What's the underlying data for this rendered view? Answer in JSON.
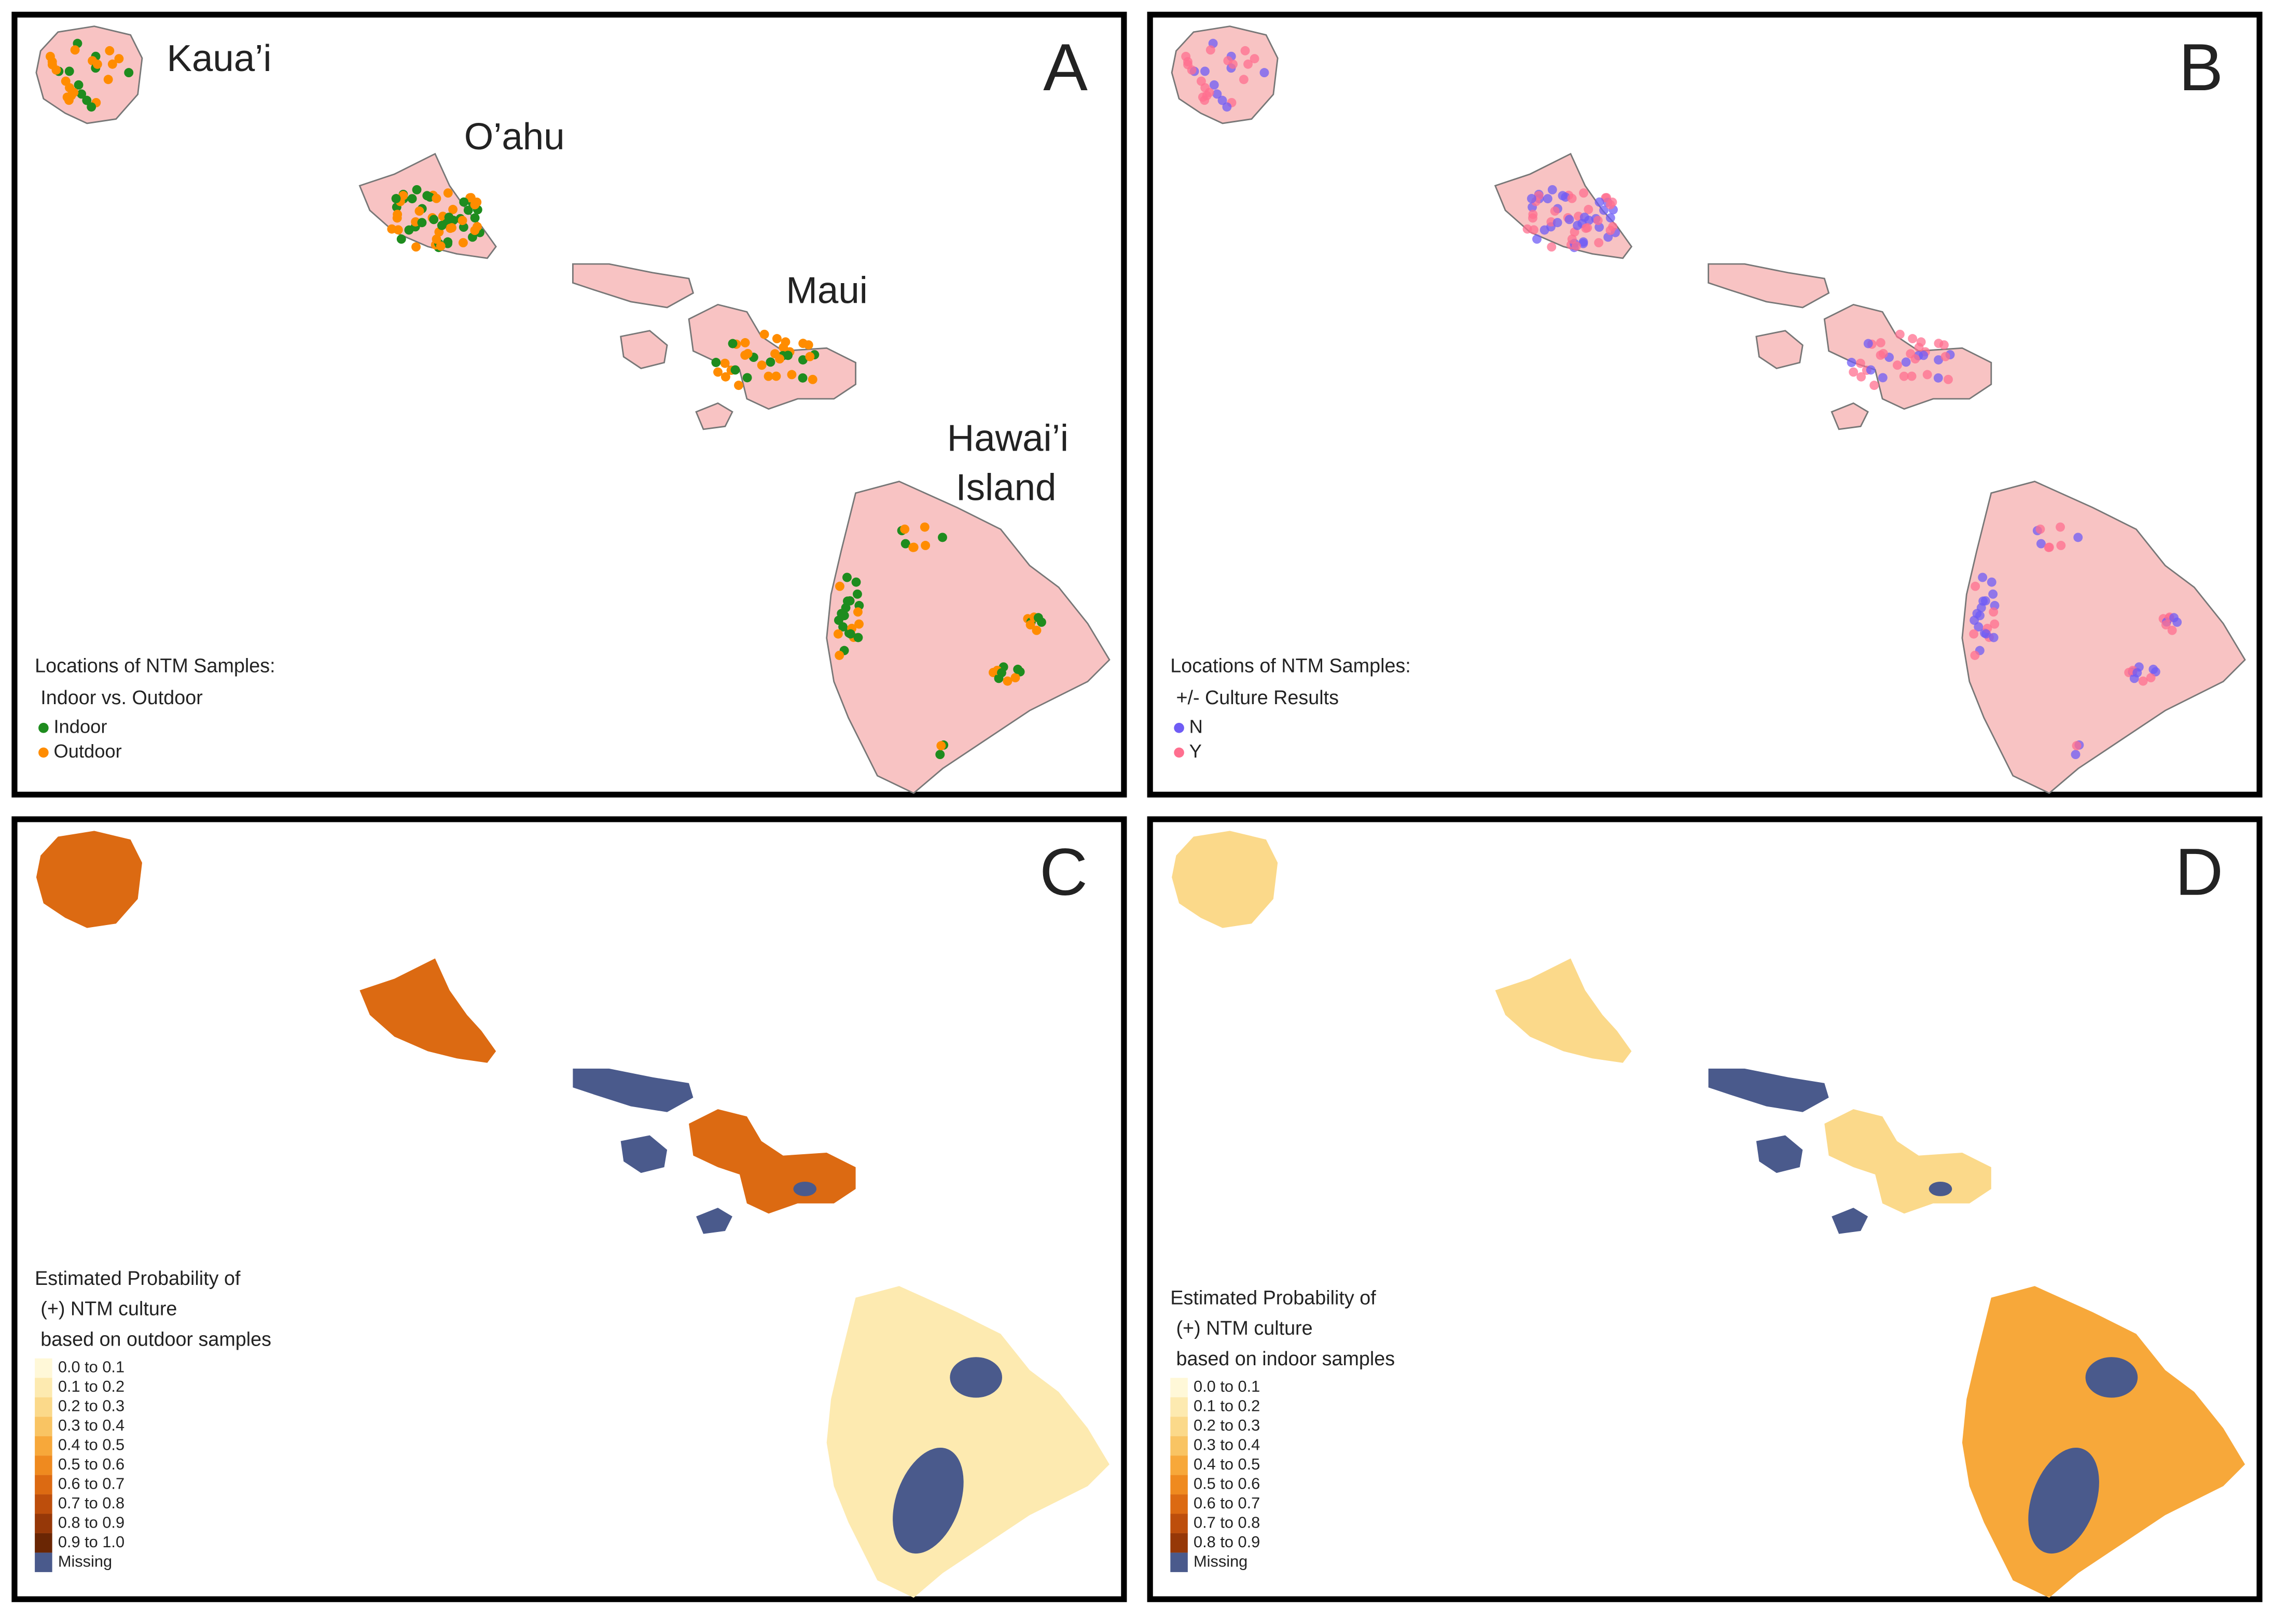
{
  "panels": [
    {
      "letter": "A",
      "style": "samples",
      "island_labels": [
        {
          "lines": [
            "Kaua’i"
          ]
        },
        {
          "lines": [
            "O’ahu"
          ]
        },
        {
          "lines": [
            "Maui"
          ]
        },
        {
          "lines": [
            "Hawai’i",
            "Island"
          ]
        }
      ],
      "legend": {
        "title": [
          "Locations of NTM Samples:",
          "Indoor vs. Outdoor"
        ],
        "items": [
          {
            "label": "Indoor",
            "color": "#1e8c1e"
          },
          {
            "label": "Outdoor",
            "color": "#ff8c00"
          }
        ]
      }
    },
    {
      "letter": "B",
      "style": "samples",
      "legend": {
        "title": [
          "Locations of NTM Samples:",
          "+/- Culture Results"
        ],
        "items": [
          {
            "label": "N",
            "color": "#6f5cf5"
          },
          {
            "label": "Y",
            "color": "#ff6f8f"
          }
        ]
      }
    },
    {
      "letter": "C",
      "style": "probability",
      "legend": {
        "title": [
          "Estimated Probability of",
          "(+) NTM culture",
          "based on outdoor samples"
        ],
        "items": [
          {
            "label": "0.0 to 0.1",
            "color": "#fff8d8"
          },
          {
            "label": "0.1 to 0.2",
            "color": "#fdeab0"
          },
          {
            "label": "0.2 to 0.3",
            "color": "#fbd98a"
          },
          {
            "label": "0.3 to 0.4",
            "color": "#f9c463"
          },
          {
            "label": "0.4 to 0.5",
            "color": "#f7a83a"
          },
          {
            "label": "0.5 to 0.6",
            "color": "#ef8a1f"
          },
          {
            "label": "0.6 to 0.7",
            "color": "#dc6a12"
          },
          {
            "label": "0.7 to 0.8",
            "color": "#bd4e0c"
          },
          {
            "label": "0.8 to 0.9",
            "color": "#963808"
          },
          {
            "label": "0.9 to 1.0",
            "color": "#6a2604"
          },
          {
            "label": "Missing",
            "color": "#4a5a8c"
          }
        ]
      }
    },
    {
      "letter": "D",
      "style": "probability",
      "legend": {
        "title": [
          "Estimated Probability of",
          "(+) NTM culture",
          "based on indoor samples"
        ],
        "items": [
          {
            "label": "0.0 to 0.1",
            "color": "#fff8d8"
          },
          {
            "label": "0.1 to 0.2",
            "color": "#fdeab0"
          },
          {
            "label": "0.2 to 0.3",
            "color": "#fbd98a"
          },
          {
            "label": "0.3 to 0.4",
            "color": "#f9c463"
          },
          {
            "label": "0.4 to 0.5",
            "color": "#f7a83a"
          },
          {
            "label": "0.5 to 0.6",
            "color": "#ef8a1f"
          },
          {
            "label": "0.6 to 0.7",
            "color": "#dc6a12"
          },
          {
            "label": "0.7 to 0.8",
            "color": "#bd4e0c"
          },
          {
            "label": "0.8 to 0.9",
            "color": "#963808"
          },
          {
            "label": "Missing",
            "color": "#4a5a8c"
          }
        ]
      }
    }
  ]
}
